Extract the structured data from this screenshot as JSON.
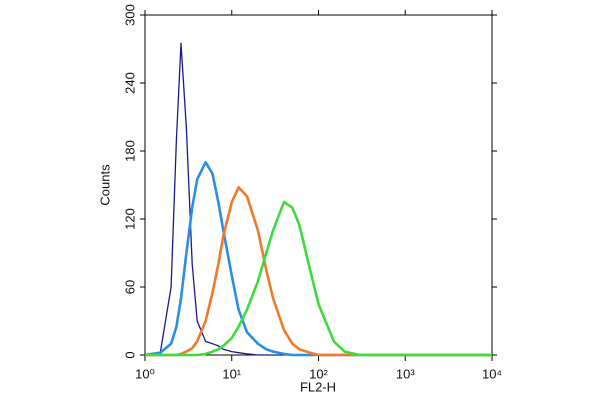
{
  "chart_data": {
    "type": "line",
    "xlabel": "FL2-H",
    "ylabel": "Counts",
    "xscale": "log",
    "x": [
      1,
      1.5,
      2,
      2.3,
      2.6,
      3,
      3.5,
      4,
      5,
      6,
      7,
      8,
      10,
      12,
      15,
      20,
      25,
      30,
      40,
      50,
      60,
      80,
      100,
      150,
      200,
      300,
      1000,
      10000
    ],
    "series": [
      {
        "color": "#1a1a8c",
        "values": [
          0,
          2,
          60,
          190,
          275,
          200,
          80,
          30,
          12,
          10,
          8,
          5,
          3,
          2,
          1,
          0,
          0,
          0,
          0,
          0,
          0,
          0,
          0,
          0,
          0,
          0,
          0,
          0
        ]
      },
      {
        "color": "#2a8fe0",
        "values": [
          0,
          2,
          10,
          25,
          50,
          90,
          130,
          155,
          170,
          160,
          135,
          110,
          70,
          40,
          20,
          10,
          5,
          3,
          1,
          0,
          0,
          0,
          0,
          0,
          0,
          0,
          0,
          0
        ]
      },
      {
        "color": "#f07a2a",
        "values": [
          0,
          0,
          0,
          0,
          1,
          3,
          6,
          12,
          30,
          55,
          80,
          105,
          135,
          148,
          140,
          110,
          75,
          50,
          22,
          10,
          5,
          2,
          0,
          0,
          0,
          0,
          0,
          0
        ]
      },
      {
        "color": "#3ddc3a",
        "values": [
          0,
          0,
          0,
          0,
          0,
          0,
          0,
          0,
          1,
          3,
          5,
          8,
          15,
          25,
          40,
          65,
          90,
          110,
          135,
          130,
          115,
          75,
          45,
          12,
          3,
          0,
          0,
          0
        ]
      }
    ],
    "xlim": [
      1,
      10000
    ],
    "xticks": [
      {
        "value": 1,
        "label": "10⁰"
      },
      {
        "value": 10,
        "label": "10¹"
      },
      {
        "value": 100,
        "label": "10²"
      },
      {
        "value": 1000,
        "label": "10³"
      },
      {
        "value": 10000,
        "label": "10⁴"
      }
    ],
    "ylim": [
      0,
      300
    ],
    "yticks": [
      0,
      60,
      120,
      180,
      240,
      300
    ],
    "grid": false
  }
}
